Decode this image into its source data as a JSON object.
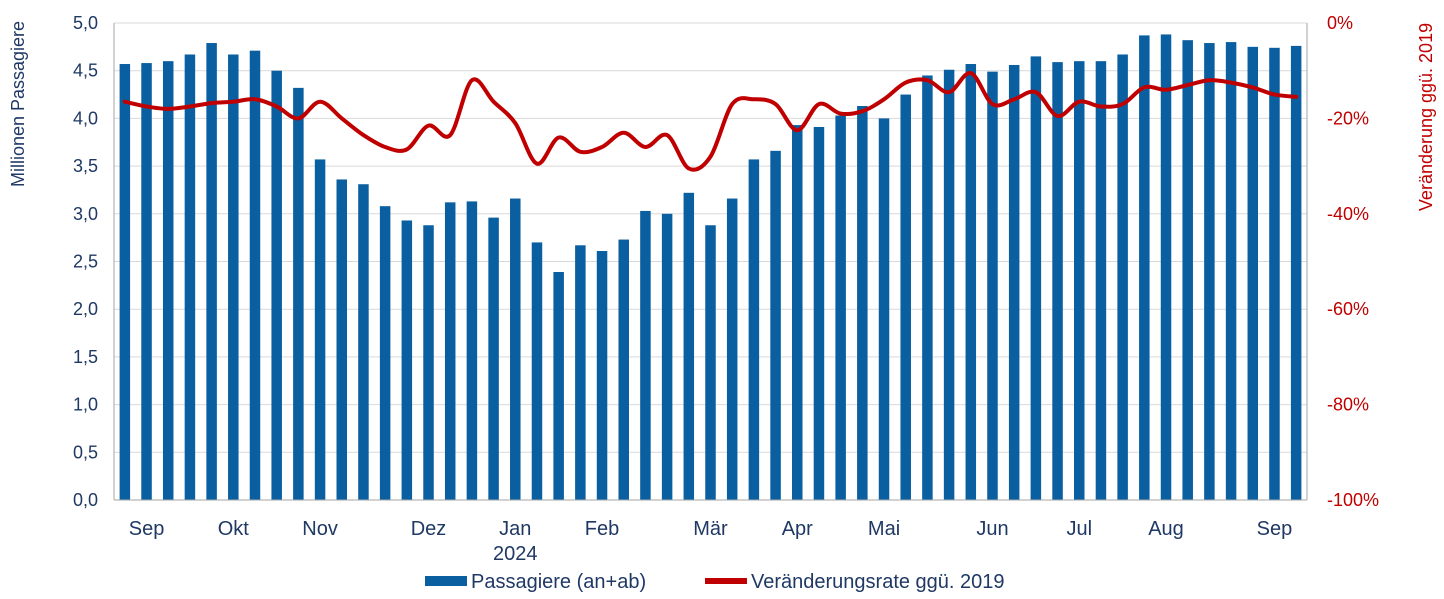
{
  "chart_data": {
    "type": "bar",
    "ylabel": "Millionen Passagiere",
    "y2label": "Veränderung ggü. 2019",
    "ylim": [
      0,
      5
    ],
    "y2lim": [
      -100,
      0
    ],
    "yticks": [
      "0,0",
      "0,5",
      "1,0",
      "1,5",
      "2,0",
      "2,5",
      "3,0",
      "3,5",
      "4,0",
      "4,5",
      "5,0"
    ],
    "y2ticks": [
      "-100%",
      "-80%",
      "-60%",
      "-40%",
      "-20%",
      "0%"
    ],
    "x_month_labels": [
      {
        "label": "Sep",
        "at": 1
      },
      {
        "label": "Okt",
        "at": 5
      },
      {
        "label": "Nov",
        "at": 9
      },
      {
        "label": "Dez",
        "at": 14
      },
      {
        "label": "Jan",
        "at": 18,
        "sublabel": "2024"
      },
      {
        "label": "Feb",
        "at": 22
      },
      {
        "label": "Mär",
        "at": 27
      },
      {
        "label": "Apr",
        "at": 31
      },
      {
        "label": "Mai",
        "at": 35
      },
      {
        "label": "Jun",
        "at": 40
      },
      {
        "label": "Jul",
        "at": 44
      },
      {
        "label": "Aug",
        "at": 48
      },
      {
        "label": "Sep",
        "at": 53
      }
    ],
    "grid": true,
    "legend_position": "bottom",
    "series": [
      {
        "name": "Passagiere (an+ab)",
        "type": "bar",
        "axis": "left",
        "color": "#0a5fa0",
        "values": [
          4.57,
          4.58,
          4.6,
          4.67,
          4.79,
          4.67,
          4.71,
          4.5,
          4.32,
          3.57,
          3.36,
          3.31,
          3.08,
          2.93,
          2.88,
          3.12,
          3.13,
          2.96,
          3.16,
          2.7,
          2.39,
          2.67,
          2.61,
          2.73,
          3.03,
          3.0,
          3.22,
          2.88,
          3.16,
          3.57,
          3.66,
          3.93,
          3.91,
          4.03,
          4.13,
          4.0,
          4.25,
          4.45,
          4.51,
          4.57,
          4.49,
          4.56,
          4.65,
          4.59,
          4.6,
          4.6,
          4.67,
          4.87,
          4.88,
          4.82,
          4.79,
          4.8,
          4.75,
          4.74,
          4.76
        ]
      },
      {
        "name": "Veränderungsrate ggü. 2019",
        "type": "line",
        "axis": "right",
        "color": "#c00000",
        "values": [
          -16.5,
          -17.5,
          -18.0,
          -17.5,
          -16.8,
          -16.5,
          -16.0,
          -17.5,
          -20.0,
          -16.5,
          -20.0,
          -23.5,
          -26.0,
          -26.5,
          -21.5,
          -23.5,
          -12.0,
          -16.5,
          -21.0,
          -29.5,
          -24.0,
          -27.0,
          -26.0,
          -23.0,
          -26.0,
          -23.5,
          -30.5,
          -28.0,
          -17.0,
          -16.0,
          -17.0,
          -22.5,
          -17.0,
          -19.0,
          -18.5,
          -16.0,
          -12.5,
          -12.0,
          -14.5,
          -10.5,
          -17.0,
          -16.0,
          -14.5,
          -19.5,
          -16.5,
          -17.5,
          -17.0,
          -13.5,
          -14.0,
          -13.0,
          -12.0,
          -12.5,
          -13.5,
          -15.0,
          -15.5
        ]
      }
    ]
  }
}
